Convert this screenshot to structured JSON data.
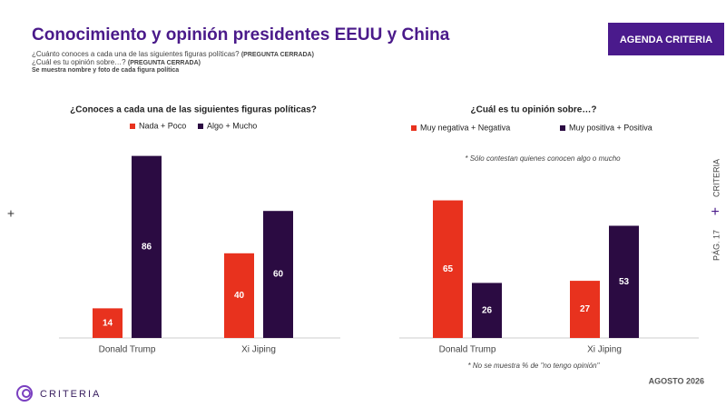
{
  "page": {
    "title": "Conocimiento y opinión presidentes EEUU y China",
    "button": "AGENDA CRITERIA",
    "subtitle": [
      {
        "text": "¿Cuánto conoces a cada una de las siguientes figuras políticas?",
        "tag": "(PREGUNTA CERRADA)"
      },
      {
        "text": "¿Cuál es tu opinión sobre…?",
        "tag": "(PREGUNTA CERRADA)"
      }
    ],
    "subtitle_note": "Se muestra nombre y foto de cada figura política",
    "side_brand": "CRITERIA",
    "page_number": "PÁG. 17",
    "date": "AGOSTO 2026",
    "logo": "CRITERIA"
  },
  "chart_data": [
    {
      "type": "bar",
      "title": "¿Conoces a cada una de las siguientes figuras políticas?",
      "categories": [
        "Donald Trump",
        "Xi Jiping"
      ],
      "series": [
        {
          "name": "Nada + Poco",
          "color": "#e8321e",
          "values": [
            14,
            40
          ]
        },
        {
          "name": "Algo + Mucho",
          "color": "#2b0b42",
          "values": [
            86,
            60
          ]
        }
      ]
    },
    {
      "type": "bar",
      "title": "¿Cuál es tu opinión sobre…?",
      "note": "* Sólo contestan quienes conocen algo o mucho",
      "footnote": "* No se muestra % de \"no tengo opinión\"",
      "categories": [
        "Donald Trump",
        "Xi Jiping"
      ],
      "series": [
        {
          "name": "Muy negativa + Negativa",
          "color": "#e8321e",
          "values": [
            65,
            27
          ]
        },
        {
          "name": "Muy positiva + Positiva",
          "color": "#2b0b42",
          "values": [
            26,
            53
          ]
        }
      ]
    }
  ]
}
